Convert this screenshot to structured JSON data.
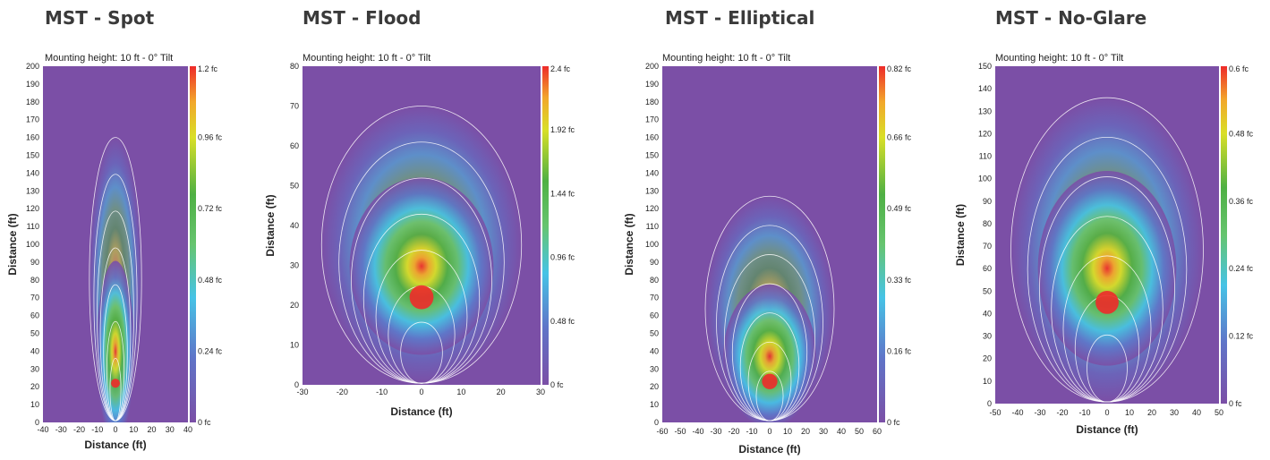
{
  "chart_data": [
    {
      "type": "heatmap",
      "panel_title": "MST - Spot",
      "subtitle": "Mounting height: 10 ft - 0° Tilt",
      "xlabel": "Distance (ft)",
      "ylabel": "Distance (ft)",
      "xlim": [
        -40,
        40
      ],
      "ylim": [
        0,
        200
      ],
      "x_ticks": [
        -40,
        -30,
        -20,
        -10,
        0,
        10,
        20,
        30,
        40
      ],
      "y_ticks": [
        0,
        10,
        20,
        30,
        40,
        50,
        60,
        70,
        80,
        90,
        100,
        110,
        120,
        130,
        140,
        150,
        160,
        170,
        180,
        190,
        200
      ],
      "colorbar_ticks": [
        "0 fc",
        "0.24 fc",
        "0.48 fc",
        "0.72 fc",
        "0.96 fc",
        "1.2 fc"
      ],
      "peak": {
        "x": 0,
        "y": 22
      },
      "outer_contour_reach": 160
    },
    {
      "type": "heatmap",
      "panel_title": "MST - Flood",
      "subtitle": "Mounting height: 10 ft - 0° Tilt",
      "xlabel": "Distance (ft)",
      "ylabel": "Distance (ft)",
      "xlim": [
        -30,
        30
      ],
      "ylim": [
        0,
        80
      ],
      "x_ticks": [
        -30,
        -20,
        -10,
        0,
        10,
        20,
        30
      ],
      "y_ticks": [
        0,
        10,
        20,
        30,
        40,
        50,
        60,
        70,
        80
      ],
      "colorbar_ticks": [
        "0 fc",
        "0.48 fc",
        "0.96 fc",
        "1.44 fc",
        "1.92 fc",
        "2.4 fc"
      ],
      "peak": {
        "x": 0,
        "y": 22
      },
      "outer_contour_reach": 70
    },
    {
      "type": "heatmap",
      "panel_title": "MST - Elliptical",
      "subtitle": "Mounting height: 10 ft - 0° Tilt",
      "xlabel": "Distance (ft)",
      "ylabel": "Distance (ft)",
      "xlim": [
        -60,
        60
      ],
      "ylim": [
        0,
        200
      ],
      "x_ticks": [
        -60,
        -50,
        -40,
        -30,
        -20,
        -10,
        0,
        10,
        20,
        30,
        40,
        50,
        60
      ],
      "y_ticks": [
        0,
        10,
        20,
        30,
        40,
        50,
        60,
        70,
        80,
        90,
        100,
        110,
        120,
        130,
        140,
        150,
        160,
        170,
        180,
        190,
        200
      ],
      "colorbar_ticks": [
        "0 fc",
        "0.16 fc",
        "0.33 fc",
        "0.49 fc",
        "0.66 fc",
        "0.82 fc"
      ],
      "peak": {
        "x": 0,
        "y": 23
      },
      "outer_contour_reach": 127
    },
    {
      "type": "heatmap",
      "panel_title": "MST - No-Glare",
      "subtitle": "Mounting height: 10 ft - 0° Tilt",
      "xlabel": "Distance (ft)",
      "ylabel": "Distance (ft)",
      "xlim": [
        -50,
        50
      ],
      "ylim": [
        0,
        150
      ],
      "x_ticks": [
        -50,
        -40,
        -30,
        -20,
        -10,
        0,
        10,
        20,
        30,
        40,
        50
      ],
      "y_ticks": [
        0,
        10,
        20,
        30,
        40,
        50,
        60,
        70,
        80,
        90,
        100,
        110,
        120,
        130,
        140,
        150
      ],
      "colorbar_ticks": [
        "0 fc",
        "0.12 fc",
        "0.24 fc",
        "0.36 fc",
        "0.48 fc",
        "0.6 fc"
      ],
      "peak": {
        "x": 0,
        "y": 45
      },
      "outer_contour_reach": 136
    }
  ]
}
